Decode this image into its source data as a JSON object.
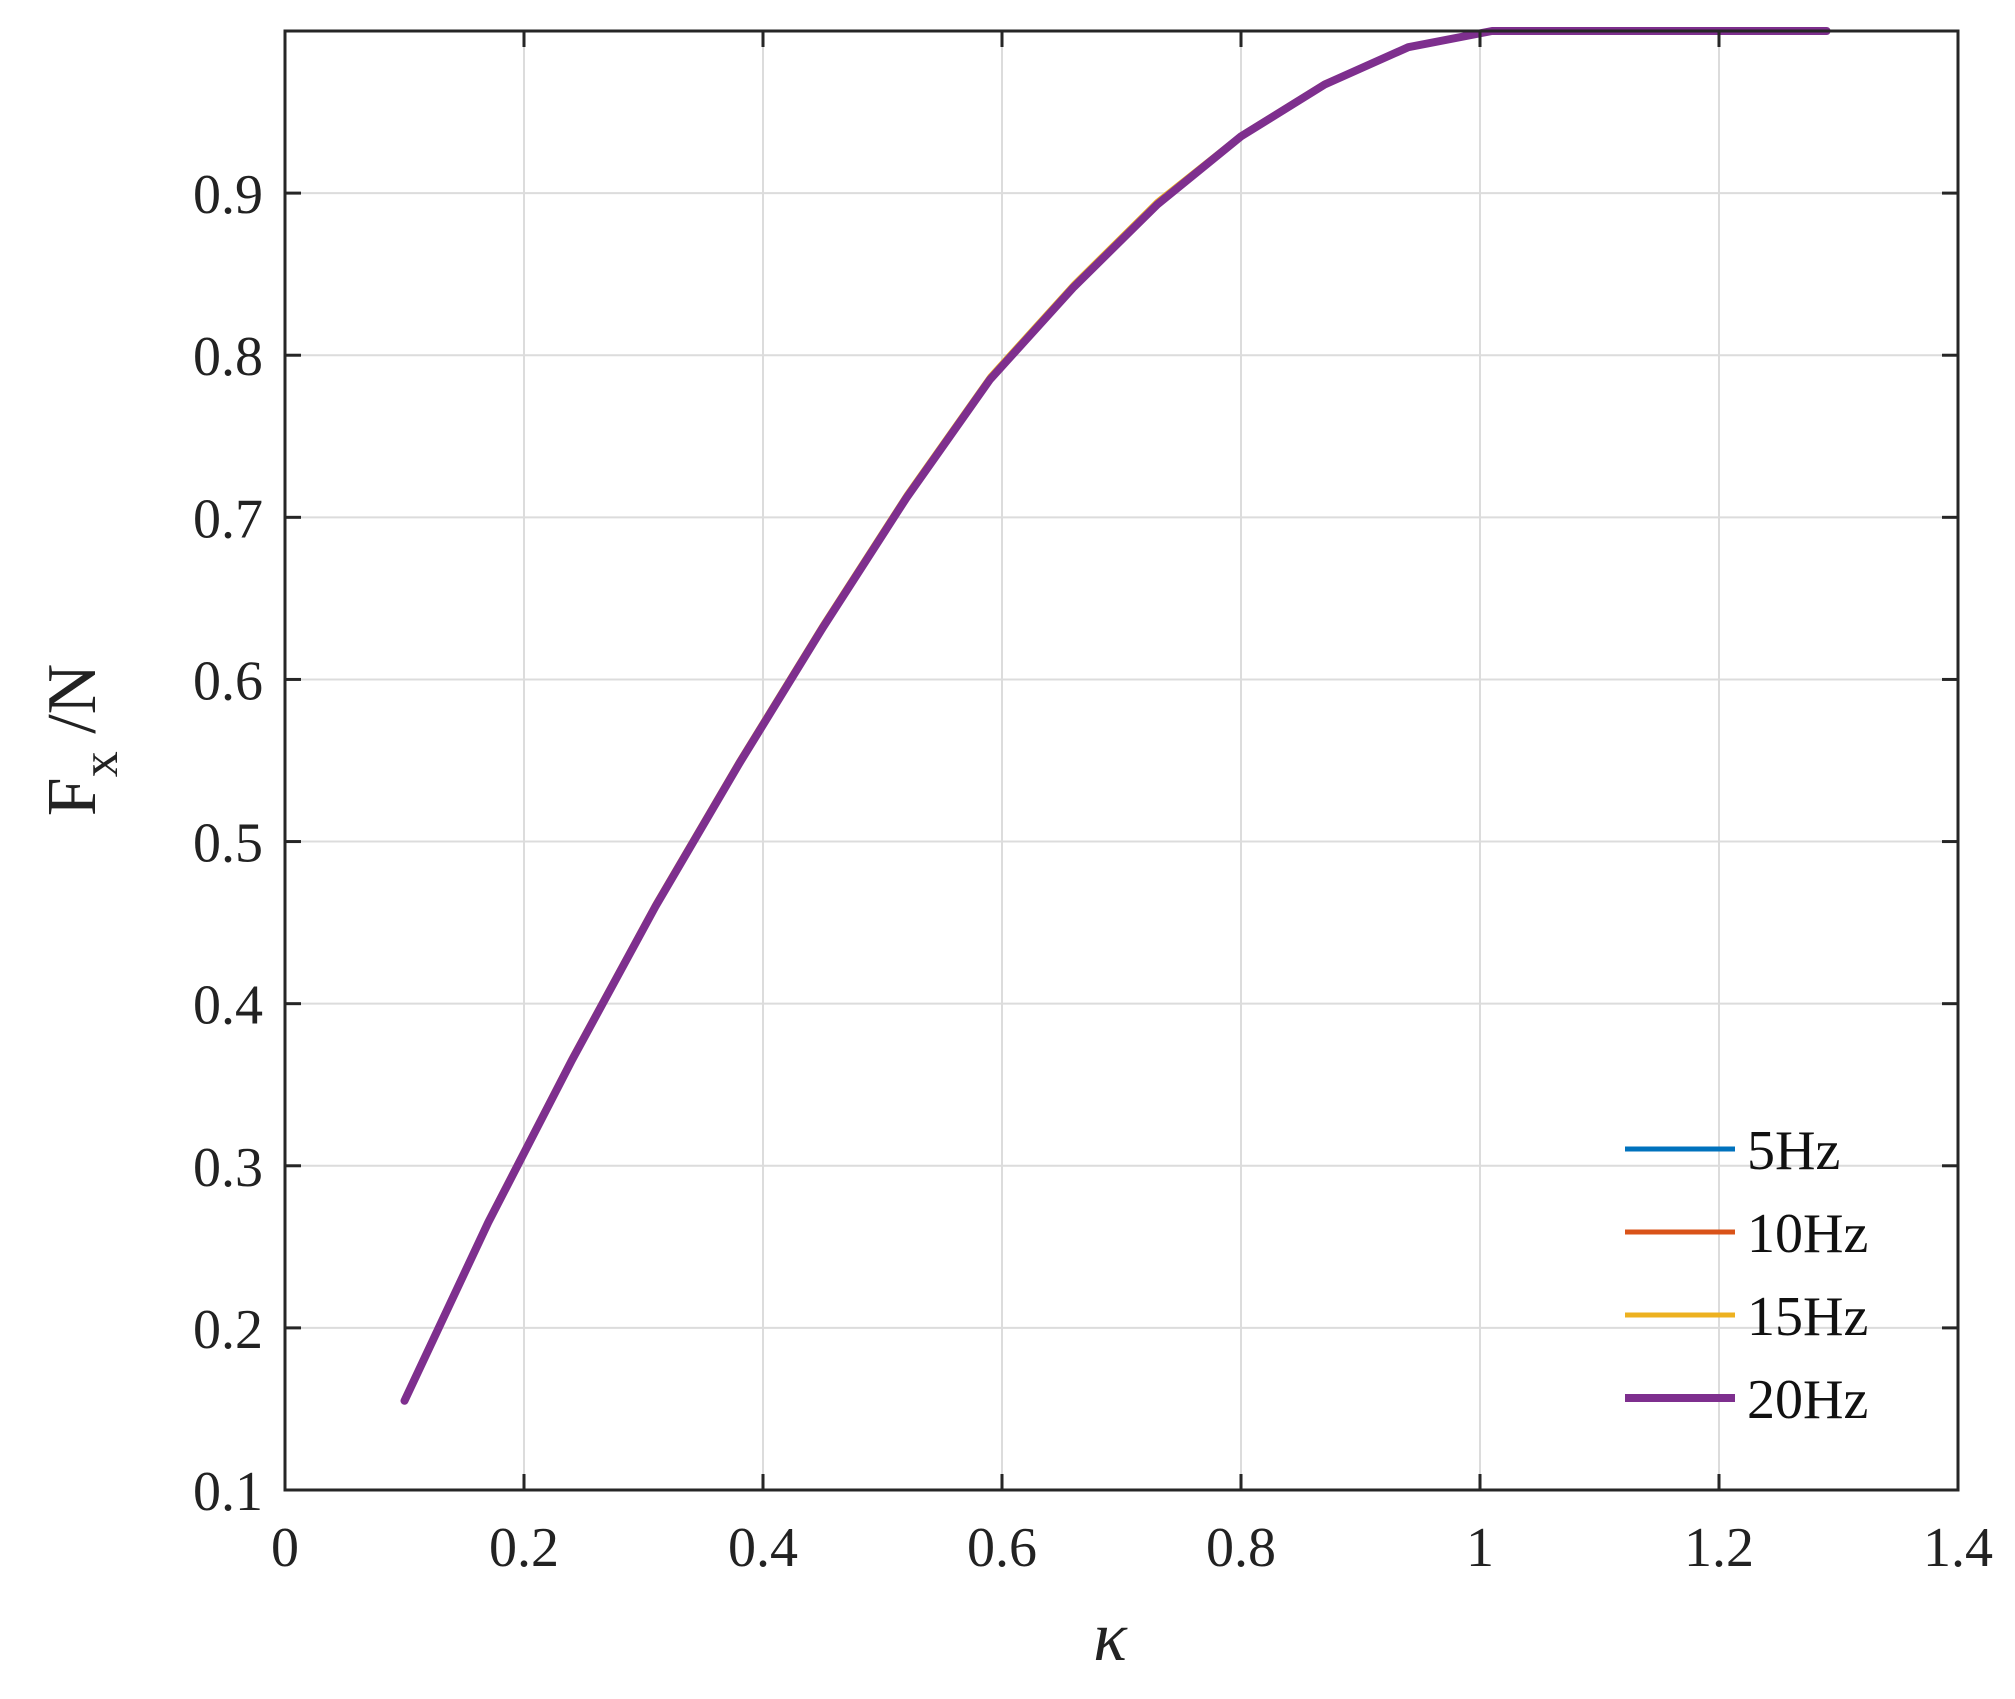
{
  "chart_data": {
    "type": "line",
    "title": "",
    "xlabel": "κ",
    "ylabel": {
      "main": "F",
      "subscript": "x",
      "suffix": " /N"
    },
    "xlim": [
      0,
      1.4
    ],
    "ylim": [
      0.1,
      1.0
    ],
    "xticks": [
      0,
      0.2,
      0.4,
      0.6,
      0.8,
      1.0,
      1.2,
      1.4
    ],
    "xtick_labels": [
      "0",
      "0.2",
      "0.4",
      "0.6",
      "0.8",
      "1",
      "1.2",
      "1.4"
    ],
    "yticks": [
      0.1,
      0.2,
      0.3,
      0.4,
      0.5,
      0.6,
      0.7,
      0.8,
      0.9
    ],
    "ytick_labels": [
      "0.1",
      "0.2",
      "0.3",
      "0.4",
      "0.5",
      "0.6",
      "0.7",
      "0.8",
      "0.9"
    ],
    "grid": true,
    "legend_position": "bottom-right",
    "x": [
      0.1,
      0.17,
      0.24,
      0.31,
      0.38,
      0.45,
      0.52,
      0.59,
      0.66,
      0.73,
      0.8,
      0.87,
      0.94,
      1.01,
      1.08,
      1.15,
      1.22,
      1.29
    ],
    "series": [
      {
        "name": "5Hz",
        "color": "#0072BD",
        "values": [
          0.155,
          0.265,
          0.365,
          0.46,
          0.548,
          0.632,
          0.712,
          0.785,
          0.842,
          0.893,
          0.935,
          0.967,
          0.99,
          1.0,
          1.0,
          1.0,
          1.0,
          1.0
        ]
      },
      {
        "name": "10Hz",
        "color": "#D95319",
        "values": [
          0.155,
          0.265,
          0.365,
          0.46,
          0.548,
          0.632,
          0.712,
          0.785,
          0.842,
          0.893,
          0.935,
          0.967,
          0.99,
          1.0,
          1.0,
          1.0,
          1.0,
          1.0
        ]
      },
      {
        "name": "15Hz",
        "color": "#EDB120",
        "values": [
          0.157,
          0.267,
          0.367,
          0.462,
          0.55,
          0.634,
          0.714,
          0.787,
          0.844,
          0.895,
          0.936,
          0.968,
          0.99,
          1.0,
          1.0,
          1.0,
          1.0,
          1.0
        ]
      },
      {
        "name": "20Hz",
        "color": "#7E2F8E",
        "values": [
          0.155,
          0.265,
          0.365,
          0.46,
          0.548,
          0.632,
          0.712,
          0.785,
          0.842,
          0.893,
          0.935,
          0.967,
          0.99,
          1.0,
          1.0,
          1.0,
          1.0,
          1.0
        ]
      }
    ]
  }
}
